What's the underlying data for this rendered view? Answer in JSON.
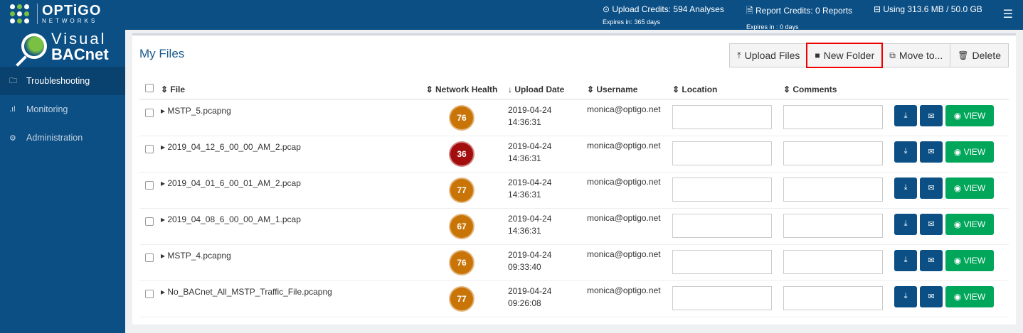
{
  "brand": {
    "logo_text": "OPTiGO",
    "logo_sub": "NETWORKS",
    "product_line1": "Visual",
    "product_line2": "BACnet"
  },
  "header": {
    "upload_credits": "Upload Credits: 594 Analyses",
    "upload_expires": "Expires in: 365 days",
    "report_credits": "Report Credits: 0 Reports",
    "report_expires": "Expires in : 0 days",
    "storage": "Using 313.6 MB / 50.0 GB",
    "menu_icon": "☰"
  },
  "sidebar": {
    "items": [
      {
        "label": "Troubleshooting",
        "icon": "folder-icon",
        "active": true
      },
      {
        "label": "Monitoring",
        "icon": "signal-icon"
      },
      {
        "label": "Administration",
        "icon": "gear-icon"
      }
    ]
  },
  "main": {
    "title": "My Files",
    "toolbar": {
      "upload": "Upload Files",
      "new_folder": "New Folder",
      "move": "Move to...",
      "delete": "Delete"
    },
    "columns": [
      "File",
      "Network Health",
      "Upload Date",
      "Username",
      "Location",
      "Comments"
    ],
    "view_label": "VIEW",
    "colors": {
      "health_ok": "#c97407",
      "health_bad": "#a30d0d",
      "view": "#00a65a",
      "primary": "#0b4f85"
    },
    "rows": [
      {
        "file": "MSTP_5.pcapng",
        "health": "76",
        "date": "2019-04-24",
        "time": "14:36:31",
        "user": "monica@optigo.net"
      },
      {
        "file": "2019_04_12_6_00_00_AM_2.pcap",
        "health": "36",
        "date": "2019-04-24",
        "time": "14:36:31",
        "user": "monica@optigo.net"
      },
      {
        "file": "2019_04_01_6_00_01_AM_2.pcap",
        "health": "77",
        "date": "2019-04-24",
        "time": "14:36:31",
        "user": "monica@optigo.net"
      },
      {
        "file": "2019_04_08_6_00_00_AM_1.pcap",
        "health": "67",
        "date": "2019-04-24",
        "time": "14:36:31",
        "user": "monica@optigo.net"
      },
      {
        "file": "MSTP_4.pcapng",
        "health": "76",
        "date": "2019-04-24",
        "time": "09:33:40",
        "user": "monica@optigo.net"
      },
      {
        "file": "No_BACnet_All_MSTP_Traffic_File.pcapng",
        "health": "77",
        "date": "2019-04-24",
        "time": "09:26:08",
        "user": "monica@optigo.net"
      }
    ]
  }
}
